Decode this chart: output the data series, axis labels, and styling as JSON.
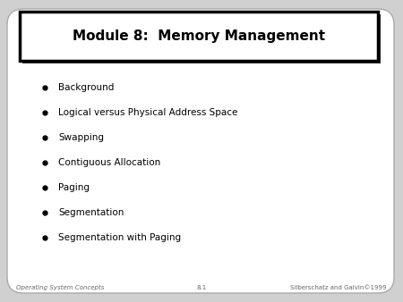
{
  "title": "Module 8:  Memory Management",
  "bullet_items": [
    "Background",
    "Logical versus Physical Address Space",
    "Swapping",
    "Contiguous Allocation",
    "Paging",
    "Segmentation",
    "Segmentation with Paging"
  ],
  "footer_left": "Operating System Concepts",
  "footer_center": "8.1",
  "footer_right": "Silberschatz and Galvin©1999",
  "bg_color": "#d0d0d0",
  "slide_bg": "#ffffff",
  "slide_border": "#aaaaaa",
  "title_box_bg": "#ffffff",
  "title_box_border": "#000000",
  "shadow_color": "#222222",
  "title_color": "#000000",
  "bullet_color": "#000000",
  "footer_color": "#666666",
  "title_fontsize": 11,
  "bullet_fontsize": 7.5,
  "footer_fontsize": 5
}
